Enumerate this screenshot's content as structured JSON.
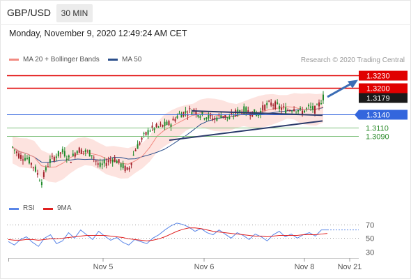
{
  "header": {
    "symbol": "GBP/USD",
    "timeframe": "30 MIN",
    "datetime": "Monday, November 9, 2020 12:49:24 AM CET"
  },
  "legend": {
    "ma20_label": "MA 20 + Bollinger Bands",
    "ma50_label": "MA 50",
    "credit": "Research © 2020 Trading Central",
    "rsi_label": "RSI",
    "rsi_ma_label": "9MA"
  },
  "colors": {
    "ma20": "#f28b82",
    "ma50": "#2b4f8c",
    "bollinger_fill": "#fde0dc",
    "bull_candle": "#1f8a2a",
    "bear_candle": "#a0202a",
    "resistance": "#e00000",
    "pivot": "#3366dd",
    "support": "#7cbf7a",
    "support_text": "#2a8a2a",
    "trendline": "#2b3a6b",
    "arrow": "#3b6db5",
    "rsi": "#5a86e8",
    "rsi_ma": "#e02020"
  },
  "chart_data": [
    {
      "type": "candlestick",
      "title": "GBP/USD",
      "timeframe": "30 MIN",
      "x_ticks": [
        "Nov 5",
        "Nov 6",
        "Nov 8",
        "Nov 21"
      ],
      "ylim": [
        1.2955,
        1.325
      ],
      "levels": [
        {
          "value": 1.323,
          "label": "1.3230",
          "kind": "resistance"
        },
        {
          "value": 1.32,
          "label": "1.3200",
          "kind": "resistance"
        },
        {
          "value": 1.3179,
          "label": "1.3179",
          "kind": "last-price"
        },
        {
          "value": 1.314,
          "label": "1.3140",
          "kind": "pivot"
        },
        {
          "value": 1.311,
          "label": "1.3110",
          "kind": "support"
        },
        {
          "value": 1.309,
          "label": "1.3090",
          "kind": "support"
        }
      ],
      "approx_close_path": [
        1.3065,
        1.3045,
        1.304,
        1.302,
        1.2985,
        1.303,
        1.3045,
        1.3055,
        1.3035,
        1.306,
        1.3055,
        1.305,
        1.302,
        1.303,
        1.304,
        1.3025,
        1.301,
        1.306,
        1.3085,
        1.3105,
        1.311,
        1.3115,
        1.312,
        1.314,
        1.3145,
        1.315,
        1.314,
        1.3135,
        1.313,
        1.314,
        1.313,
        1.3145,
        1.315,
        1.3145,
        1.314,
        1.316,
        1.3165,
        1.3155,
        1.315,
        1.3155,
        1.3145,
        1.3155,
        1.315,
        1.3179
      ]
    },
    {
      "type": "line",
      "title": "RSI",
      "y_ticks": [
        70,
        50,
        30
      ],
      "ylim": [
        25,
        80
      ],
      "series": [
        {
          "name": "RSI",
          "values": [
            45,
            40,
            48,
            52,
            44,
            38,
            50,
            55,
            42,
            46,
            58,
            50,
            62,
            55,
            48,
            60,
            53,
            47,
            51,
            44,
            40,
            48,
            45,
            42,
            50,
            55,
            62,
            68,
            72,
            70,
            66,
            60,
            64,
            58,
            55,
            62,
            56,
            50,
            58,
            54,
            48,
            56,
            52,
            46,
            55,
            60,
            52,
            56,
            50,
            55,
            58,
            53,
            62,
            62
          ]
        },
        {
          "name": "9MA",
          "values": [
            48,
            47,
            47,
            48,
            48,
            47,
            48,
            49,
            49,
            50,
            51,
            52,
            53,
            54,
            54,
            54,
            54,
            53,
            52,
            51,
            49,
            48,
            47,
            46,
            47,
            49,
            52,
            56,
            60,
            63,
            65,
            65,
            64,
            62,
            60,
            59,
            58,
            57,
            56,
            55,
            54,
            53,
            53,
            52,
            53,
            54,
            54,
            54,
            54,
            55,
            55,
            55,
            56,
            57
          ]
        }
      ]
    }
  ]
}
